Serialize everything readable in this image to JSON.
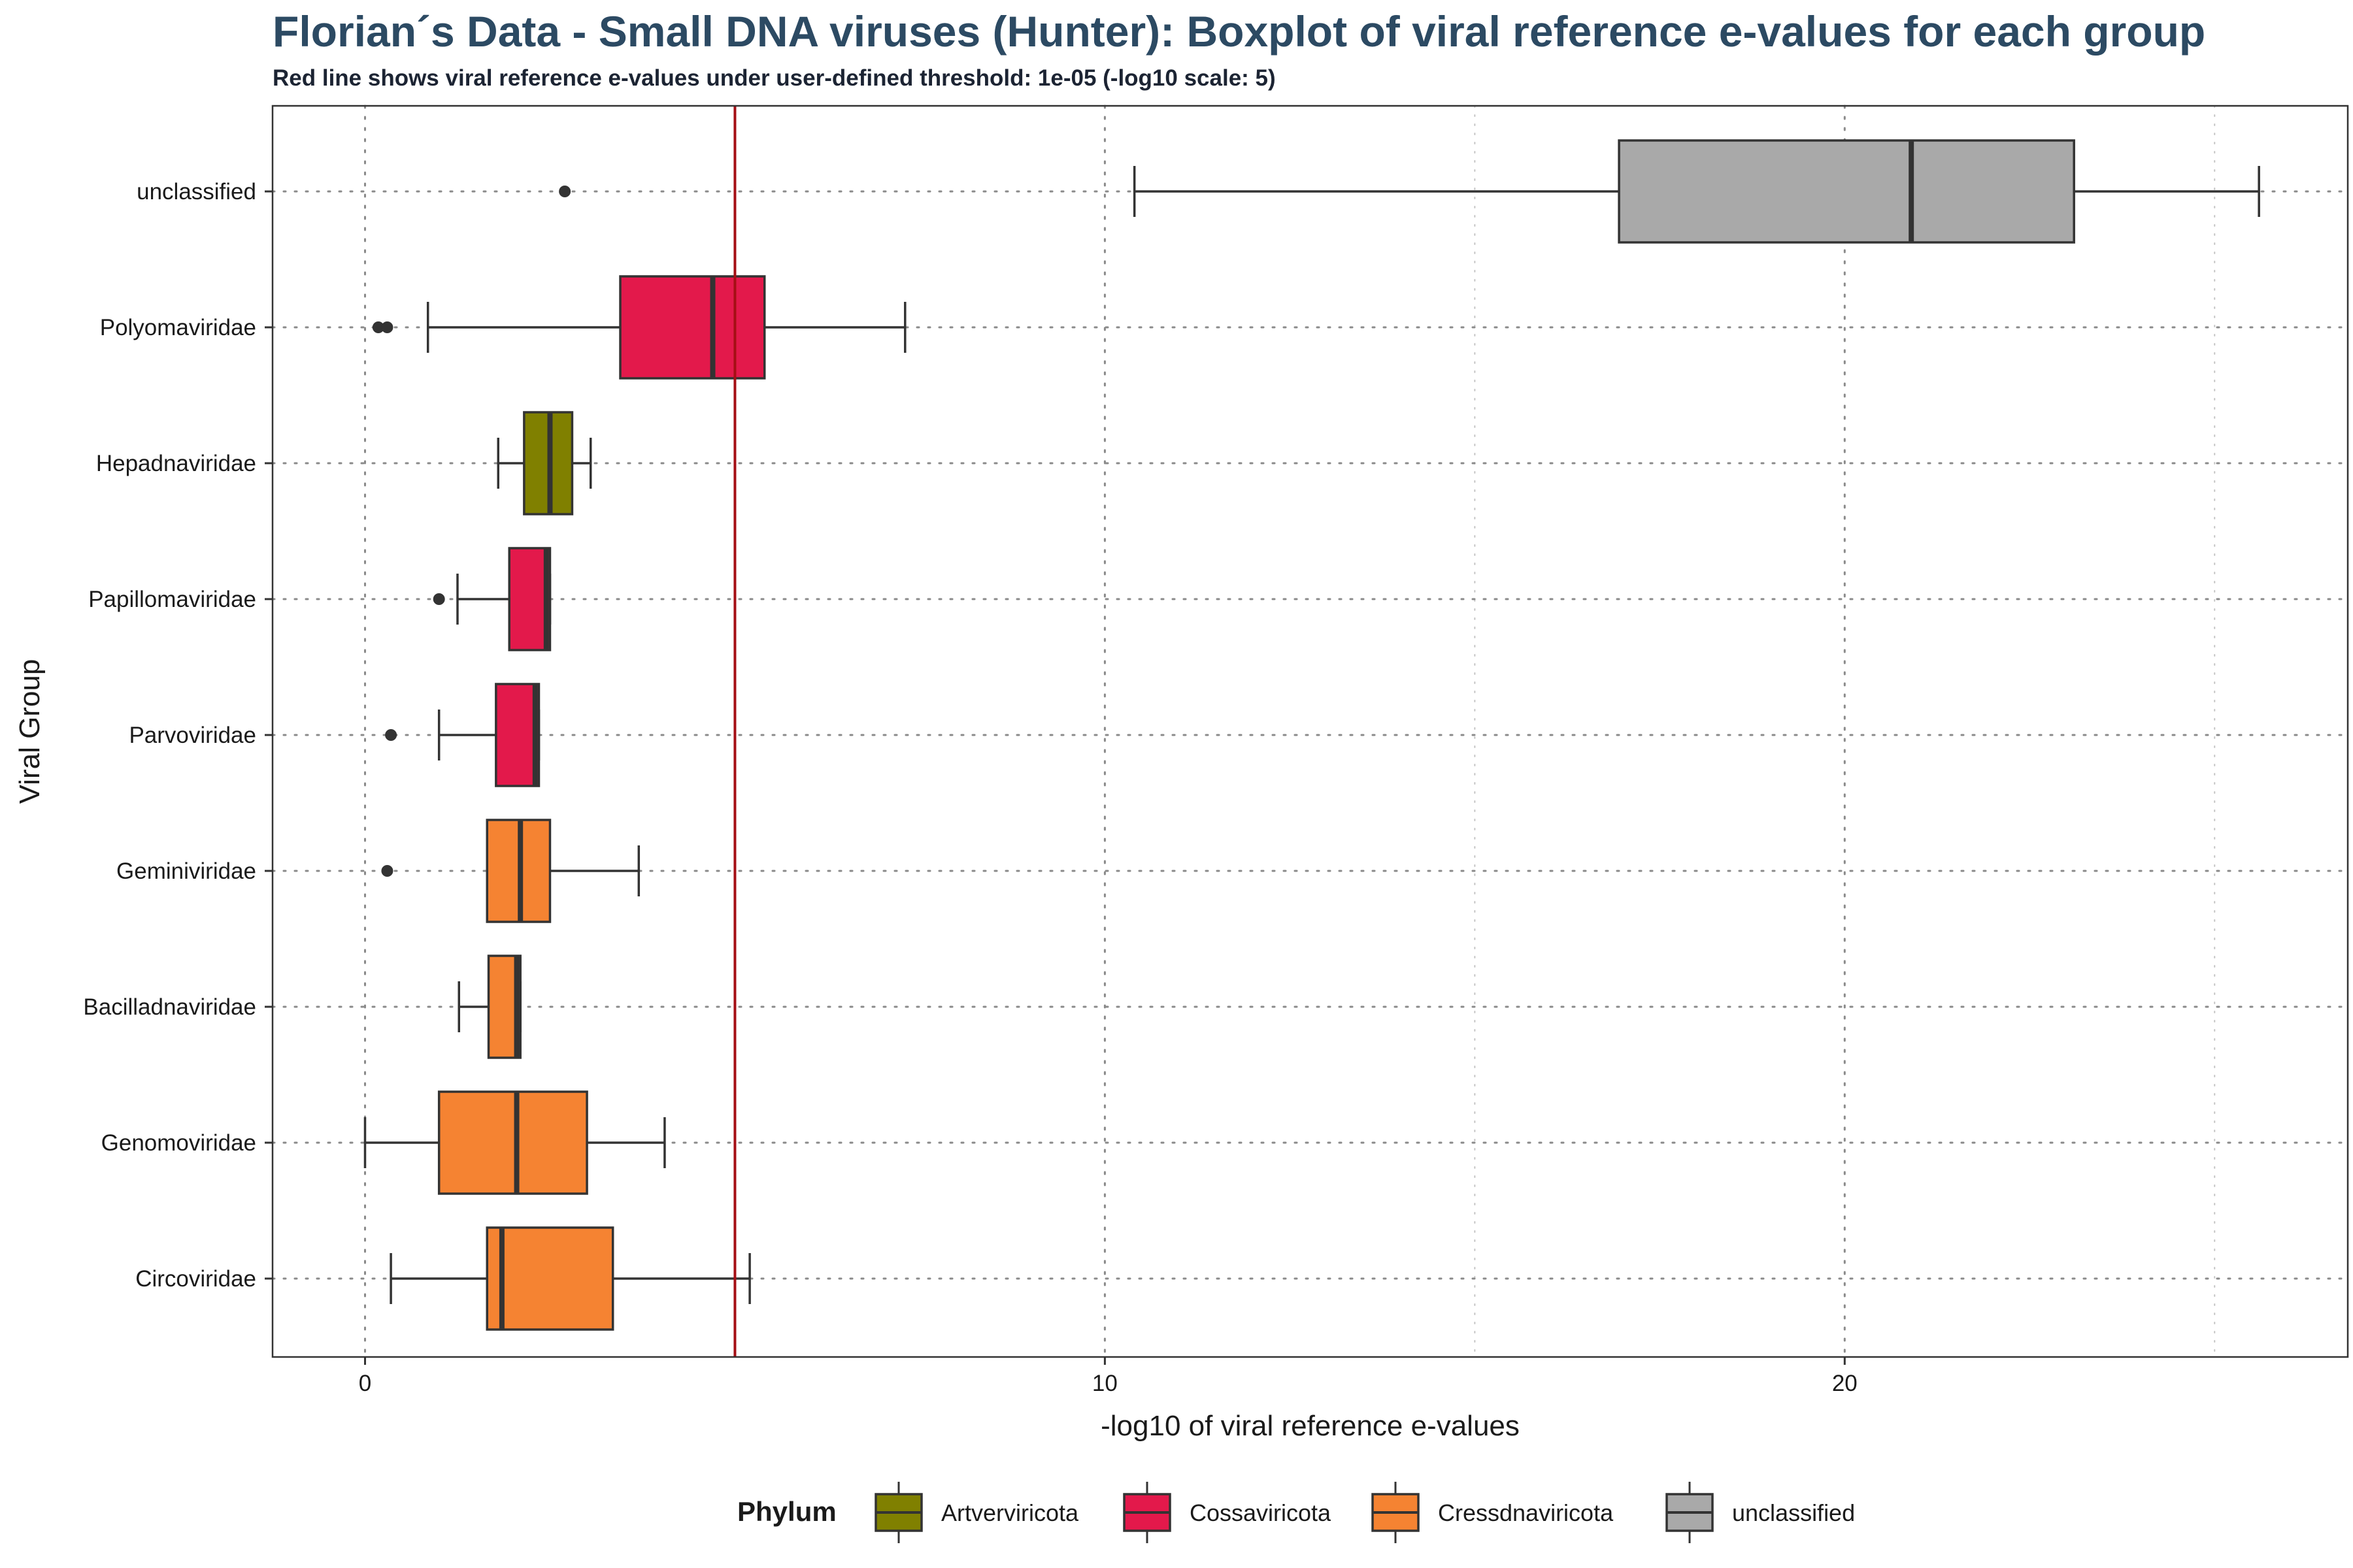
{
  "chart_data": {
    "type": "boxplot",
    "title": "Florian´s Data - Small DNA viruses (Hunter): Boxplot of viral reference e-values for each group",
    "subtitle": "Red line shows viral reference e-values under user-defined threshold: 1e-05 (-log10 scale: 5)",
    "xlabel": "-log10 of viral reference e-values",
    "ylabel": "Viral Group",
    "xlim": [
      -1.25,
      26.8
    ],
    "x_ticks": [
      0,
      10,
      20
    ],
    "x_tick_labels": [
      "0",
      "10",
      "20"
    ],
    "threshold": 5,
    "threshold_color": "#a50f15",
    "orientation": "horizontal",
    "grid": "dotted",
    "legend": {
      "title": "Phylum",
      "position": "bottom",
      "entries": [
        {
          "label": "Artverviricota",
          "color": "#808000"
        },
        {
          "label": "Cossaviricota",
          "color": "#e3194b"
        },
        {
          "label": "Cressdnaviricota",
          "color": "#f58332"
        },
        {
          "label": "unclassified",
          "color": "#a9a9a9"
        }
      ]
    },
    "groups": [
      {
        "name": "unclassified",
        "phylum": "unclassified",
        "color": "#a9a9a9",
        "whisker_low": 10.4,
        "q1": 16.95,
        "median": 20.9,
        "q3": 23.1,
        "whisker_high": 25.6,
        "outliers": [
          2.7
        ]
      },
      {
        "name": "Polyomaviridae",
        "phylum": "Cossaviricota",
        "color": "#e3194b",
        "whisker_low": 0.85,
        "q1": 3.45,
        "median": 4.7,
        "q3": 5.4,
        "whisker_high": 7.3,
        "outliers": [
          0.18,
          0.3
        ]
      },
      {
        "name": "Hepadnaviridae",
        "phylum": "Artverviricota",
        "color": "#808000",
        "whisker_low": 1.8,
        "q1": 2.15,
        "median": 2.5,
        "q3": 2.8,
        "whisker_high": 3.05,
        "outliers": []
      },
      {
        "name": "Papillomaviridae",
        "phylum": "Cossaviricota",
        "color": "#e3194b",
        "whisker_low": 1.25,
        "q1": 1.95,
        "median": 2.45,
        "q3": 2.5,
        "whisker_high": 2.5,
        "outliers": [
          1.0
        ]
      },
      {
        "name": "Parvoviridae",
        "phylum": "Cossaviricota",
        "color": "#e3194b",
        "whisker_low": 1.0,
        "q1": 1.77,
        "median": 2.3,
        "q3": 2.35,
        "whisker_high": 2.35,
        "outliers": [
          0.35
        ]
      },
      {
        "name": "Geminiviridae",
        "phylum": "Cressdnaviricota",
        "color": "#f58332",
        "whisker_low": 1.65,
        "q1": 1.65,
        "median": 2.1,
        "q3": 2.5,
        "whisker_high": 3.7,
        "outliers": [
          0.3
        ]
      },
      {
        "name": "Bacilladnaviridae",
        "phylum": "Cressdnaviricota",
        "color": "#f58332",
        "whisker_low": 1.27,
        "q1": 1.67,
        "median": 2.05,
        "q3": 2.1,
        "whisker_high": 2.1,
        "outliers": []
      },
      {
        "name": "Genomoviridae",
        "phylum": "Cressdnaviricota",
        "color": "#f58332",
        "whisker_low": 0.0,
        "q1": 1.0,
        "median": 2.05,
        "q3": 3.0,
        "whisker_high": 4.05,
        "outliers": []
      },
      {
        "name": "Circoviridae",
        "phylum": "Cressdnaviricota",
        "color": "#f58332",
        "whisker_low": 0.35,
        "q1": 1.65,
        "median": 1.85,
        "q3": 3.35,
        "whisker_high": 5.2,
        "outliers": []
      }
    ]
  }
}
